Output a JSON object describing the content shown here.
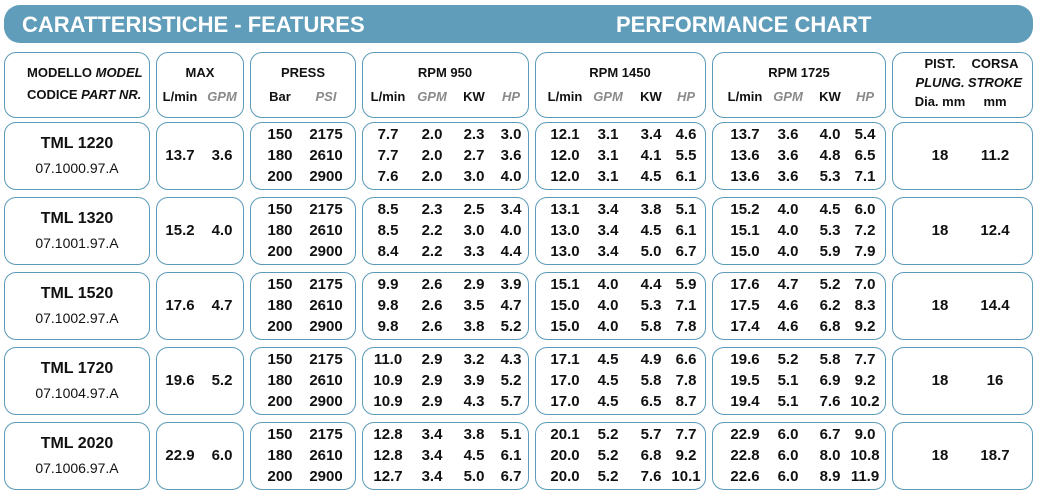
{
  "header": {
    "left": "CARATTERISTICHE - FEATURES",
    "right": "PERFORMANCE CHART"
  },
  "columns": {
    "model": {
      "line1": [
        "MODELLO",
        "MODEL"
      ],
      "line2": [
        "CODICE",
        "PART NR."
      ]
    },
    "max": {
      "title": "MAX",
      "units": [
        "L/min",
        "GPM"
      ]
    },
    "press": {
      "title": "PRESS",
      "units": [
        "Bar",
        "PSI"
      ]
    },
    "rpm": [
      {
        "title": "RPM 950",
        "units": [
          "L/min",
          "GPM",
          "KW",
          "HP"
        ]
      },
      {
        "title": "RPM 1450",
        "units": [
          "L/min",
          "GPM",
          "KW",
          "HP"
        ]
      },
      {
        "title": "RPM 1725",
        "units": [
          "L/min",
          "GPM",
          "KW",
          "HP"
        ]
      }
    ],
    "plunger": [
      "PIST.",
      "PLUNG.",
      "Dia. mm"
    ],
    "stroke": [
      "CORSA",
      "STROKE",
      "mm"
    ]
  },
  "rows": [
    {
      "model": "TML 1220",
      "code": "07.1000.97.A",
      "max": [
        "13.7",
        "3.6"
      ],
      "press": [
        [
          "150",
          "2175"
        ],
        [
          "180",
          "2610"
        ],
        [
          "200",
          "2900"
        ]
      ],
      "rpm": [
        [
          [
            "7.7",
            "2.0",
            "2.3",
            "3.0"
          ],
          [
            "7.7",
            "2.0",
            "2.7",
            "3.6"
          ],
          [
            "7.6",
            "2.0",
            "3.0",
            "4.0"
          ]
        ],
        [
          [
            "12.1",
            "3.1",
            "3.4",
            "4.6"
          ],
          [
            "12.0",
            "3.1",
            "4.1",
            "5.5"
          ],
          [
            "12.0",
            "3.1",
            "4.5",
            "6.1"
          ]
        ],
        [
          [
            "13.7",
            "3.6",
            "4.0",
            "5.4"
          ],
          [
            "13.6",
            "3.6",
            "4.8",
            "6.5"
          ],
          [
            "13.6",
            "3.6",
            "5.3",
            "7.1"
          ]
        ]
      ],
      "plunger": "18",
      "stroke": "11.2"
    },
    {
      "model": "TML 1320",
      "code": "07.1001.97.A",
      "max": [
        "15.2",
        "4.0"
      ],
      "press": [
        [
          "150",
          "2175"
        ],
        [
          "180",
          "2610"
        ],
        [
          "200",
          "2900"
        ]
      ],
      "rpm": [
        [
          [
            "8.5",
            "2.3",
            "2.5",
            "3.4"
          ],
          [
            "8.5",
            "2.2",
            "3.0",
            "4.0"
          ],
          [
            "8.4",
            "2.2",
            "3.3",
            "4.4"
          ]
        ],
        [
          [
            "13.1",
            "3.4",
            "3.8",
            "5.1"
          ],
          [
            "13.0",
            "3.4",
            "4.5",
            "6.1"
          ],
          [
            "13.0",
            "3.4",
            "5.0",
            "6.7"
          ]
        ],
        [
          [
            "15.2",
            "4.0",
            "4.5",
            "6.0"
          ],
          [
            "15.1",
            "4.0",
            "5.3",
            "7.2"
          ],
          [
            "15.0",
            "4.0",
            "5.9",
            "7.9"
          ]
        ]
      ],
      "plunger": "18",
      "stroke": "12.4"
    },
    {
      "model": "TML 1520",
      "code": "07.1002.97.A",
      "max": [
        "17.6",
        "4.7"
      ],
      "press": [
        [
          "150",
          "2175"
        ],
        [
          "180",
          "2610"
        ],
        [
          "200",
          "2900"
        ]
      ],
      "rpm": [
        [
          [
            "9.9",
            "2.6",
            "2.9",
            "3.9"
          ],
          [
            "9.8",
            "2.6",
            "3.5",
            "4.7"
          ],
          [
            "9.8",
            "2.6",
            "3.8",
            "5.2"
          ]
        ],
        [
          [
            "15.1",
            "4.0",
            "4.4",
            "5.9"
          ],
          [
            "15.0",
            "4.0",
            "5.3",
            "7.1"
          ],
          [
            "15.0",
            "4.0",
            "5.8",
            "7.8"
          ]
        ],
        [
          [
            "17.6",
            "4.7",
            "5.2",
            "7.0"
          ],
          [
            "17.5",
            "4.6",
            "6.2",
            "8.3"
          ],
          [
            "17.4",
            "4.6",
            "6.8",
            "9.2"
          ]
        ]
      ],
      "plunger": "18",
      "stroke": "14.4"
    },
    {
      "model": "TML 1720",
      "code": "07.1004.97.A",
      "max": [
        "19.6",
        "5.2"
      ],
      "press": [
        [
          "150",
          "2175"
        ],
        [
          "180",
          "2610"
        ],
        [
          "200",
          "2900"
        ]
      ],
      "rpm": [
        [
          [
            "11.0",
            "2.9",
            "3.2",
            "4.3"
          ],
          [
            "10.9",
            "2.9",
            "3.9",
            "5.2"
          ],
          [
            "10.9",
            "2.9",
            "4.3",
            "5.7"
          ]
        ],
        [
          [
            "17.1",
            "4.5",
            "4.9",
            "6.6"
          ],
          [
            "17.0",
            "4.5",
            "5.8",
            "7.8"
          ],
          [
            "17.0",
            "4.5",
            "6.5",
            "8.7"
          ]
        ],
        [
          [
            "19.6",
            "5.2",
            "5.8",
            "7.7"
          ],
          [
            "19.5",
            "5.1",
            "6.9",
            "9.2"
          ],
          [
            "19.4",
            "5.1",
            "7.6",
            "10.2"
          ]
        ]
      ],
      "plunger": "18",
      "stroke": "16"
    },
    {
      "model": "TML 2020",
      "code": "07.1006.97.A",
      "max": [
        "22.9",
        "6.0"
      ],
      "press": [
        [
          "150",
          "2175"
        ],
        [
          "180",
          "2610"
        ],
        [
          "200",
          "2900"
        ]
      ],
      "rpm": [
        [
          [
            "12.8",
            "3.4",
            "3.8",
            "5.1"
          ],
          [
            "12.8",
            "3.4",
            "4.5",
            "6.1"
          ],
          [
            "12.7",
            "3.4",
            "5.0",
            "6.7"
          ]
        ],
        [
          [
            "20.1",
            "5.2",
            "5.7",
            "7.7"
          ],
          [
            "20.0",
            "5.2",
            "6.8",
            "9.2"
          ],
          [
            "20.0",
            "5.2",
            "7.6",
            "10.1"
          ]
        ],
        [
          [
            "22.9",
            "6.0",
            "6.7",
            "9.0"
          ],
          [
            "22.8",
            "6.0",
            "8.0",
            "10.8"
          ],
          [
            "22.6",
            "6.0",
            "8.9",
            "11.9"
          ]
        ]
      ],
      "plunger": "18",
      "stroke": "18.7"
    }
  ]
}
